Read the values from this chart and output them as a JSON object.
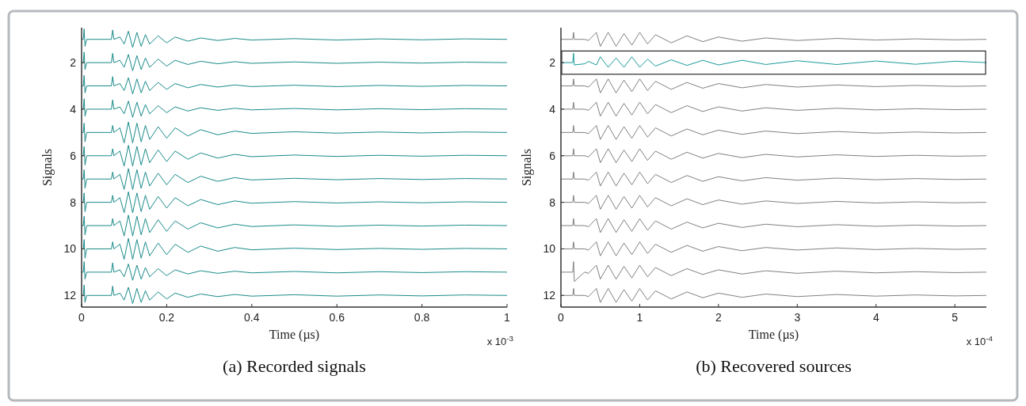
{
  "chart_data": [
    {
      "type": "line",
      "title": "(a) Recorded signals",
      "xlabel": "Time (µs)",
      "ylabel": "Signals",
      "annotations": [
        "x 10$^{-3}$"
      ],
      "x": [
        0,
        0.004,
        0.006,
        0.008,
        0.012,
        0.07,
        0.073,
        0.076,
        0.09,
        0.1,
        0.11,
        0.12,
        0.13,
        0.14,
        0.15,
        0.16,
        0.18,
        0.2,
        0.22,
        0.25,
        0.28,
        0.32,
        0.36,
        0.4,
        0.5,
        0.6,
        0.7,
        0.8,
        0.9,
        1
      ],
      "xlim": [
        0,
        1
      ],
      "xticks": [
        0,
        0.2,
        0.4,
        0.6,
        0.8,
        1
      ],
      "ylim": [
        12.5,
        0.5
      ],
      "yticks": [
        2,
        4,
        6,
        8,
        10,
        12
      ],
      "series": [
        {
          "color": "#1a8a8a",
          "values": [
            1,
            1,
            0.55,
            1.3,
            1,
            1,
            0.6,
            1,
            0.9,
            1.2,
            0.65,
            1.35,
            0.7,
            1.3,
            0.8,
            1.2,
            0.85,
            1.15,
            0.9,
            1.08,
            0.94,
            1.05,
            0.96,
            1.03,
            0.97,
            1.03,
            0.98,
            1.02,
            0.98,
            1
          ]
        },
        {
          "color": "#1a8a8a",
          "values": [
            2,
            2,
            1.55,
            2.3,
            2,
            2,
            1.6,
            2,
            1.9,
            2.2,
            1.65,
            2.35,
            1.7,
            2.3,
            1.8,
            2.2,
            1.85,
            2.15,
            1.9,
            2.08,
            1.94,
            2.05,
            1.96,
            2.03,
            1.97,
            2.03,
            1.98,
            2.02,
            1.98,
            2
          ]
        },
        {
          "color": "#1a8a8a",
          "values": [
            3,
            3,
            2.55,
            3.3,
            3,
            3,
            2.6,
            3,
            2.9,
            3.2,
            2.65,
            3.35,
            2.7,
            3.3,
            2.8,
            3.2,
            2.85,
            3.15,
            2.9,
            3.08,
            2.94,
            3.05,
            2.96,
            3.03,
            2.97,
            3.03,
            2.98,
            3.02,
            2.98,
            3
          ]
        },
        {
          "color": "#1a8a8a",
          "values": [
            4,
            4,
            3.55,
            4.3,
            4,
            4,
            3.6,
            4,
            3.9,
            4.2,
            3.65,
            4.35,
            3.7,
            4.3,
            3.8,
            4.2,
            3.85,
            4.15,
            3.9,
            4.08,
            3.94,
            4.05,
            3.96,
            4.03,
            3.97,
            4.03,
            3.98,
            4.02,
            3.98,
            4
          ]
        },
        {
          "color": "#1a8a8a",
          "values": [
            5,
            5,
            4.6,
            5.4,
            5,
            5,
            4.7,
            5,
            4.8,
            5.45,
            4.55,
            5.45,
            4.6,
            5.4,
            4.7,
            5.3,
            4.75,
            5.25,
            4.8,
            5.15,
            4.88,
            5.1,
            4.94,
            5.04,
            4.97,
            5.03,
            4.98,
            5.02,
            4.98,
            5
          ]
        },
        {
          "color": "#1a8a8a",
          "values": [
            6,
            6,
            5.6,
            6.4,
            6,
            6,
            5.7,
            6,
            5.8,
            6.45,
            5.55,
            6.45,
            5.6,
            6.4,
            5.7,
            6.3,
            5.75,
            6.25,
            5.8,
            6.15,
            5.88,
            6.1,
            5.94,
            6.04,
            5.97,
            6.03,
            5.98,
            6.02,
            5.98,
            6
          ]
        },
        {
          "color": "#1a8a8a",
          "values": [
            7,
            7,
            6.6,
            7.4,
            7,
            7,
            6.7,
            7,
            6.8,
            7.45,
            6.55,
            7.45,
            6.6,
            7.4,
            6.7,
            7.3,
            6.75,
            7.25,
            6.8,
            7.15,
            6.88,
            7.1,
            6.94,
            7.04,
            6.97,
            7.03,
            6.98,
            7.02,
            6.98,
            7
          ]
        },
        {
          "color": "#1a8a8a",
          "values": [
            8,
            8,
            7.6,
            8.4,
            8,
            8,
            7.7,
            8,
            7.8,
            8.45,
            7.55,
            8.45,
            7.6,
            8.4,
            7.7,
            8.3,
            7.75,
            8.25,
            7.8,
            8.15,
            7.88,
            8.1,
            7.94,
            8.04,
            7.97,
            8.03,
            7.98,
            8.02,
            7.98,
            8
          ]
        },
        {
          "color": "#1a8a8a",
          "values": [
            9,
            9,
            8.6,
            9.4,
            9,
            9,
            8.7,
            9,
            8.8,
            9.45,
            8.55,
            9.45,
            8.6,
            9.4,
            8.7,
            9.3,
            8.75,
            9.25,
            8.8,
            9.15,
            8.88,
            9.1,
            8.94,
            9.04,
            8.97,
            9.03,
            8.98,
            9.02,
            8.98,
            9
          ]
        },
        {
          "color": "#1a8a8a",
          "values": [
            10,
            10,
            9.6,
            10.4,
            10,
            10,
            9.7,
            10,
            9.8,
            10.45,
            9.55,
            10.45,
            9.6,
            10.4,
            9.7,
            10.3,
            9.75,
            10.25,
            9.8,
            10.15,
            9.88,
            10.1,
            9.94,
            10.04,
            9.97,
            10.03,
            9.98,
            10.02,
            9.98,
            10
          ]
        },
        {
          "color": "#1a8a8a",
          "values": [
            11,
            11,
            10.55,
            11.3,
            11,
            11,
            10.6,
            11,
            10.9,
            11.2,
            10.65,
            11.35,
            10.7,
            11.3,
            10.8,
            11.2,
            10.85,
            11.15,
            10.9,
            11.08,
            10.94,
            11.05,
            10.96,
            11.03,
            10.97,
            11.03,
            10.98,
            11.02,
            10.98,
            11
          ]
        },
        {
          "color": "#1a8a8a",
          "values": [
            12,
            12,
            11.55,
            12.3,
            12,
            12,
            11.6,
            12,
            11.9,
            12.2,
            11.65,
            12.35,
            11.7,
            12.3,
            11.8,
            12.2,
            11.85,
            12.15,
            11.9,
            12.08,
            11.94,
            12.05,
            11.96,
            12.03,
            11.97,
            12.03,
            11.98,
            12.02,
            11.98,
            12
          ]
        }
      ]
    },
    {
      "type": "line",
      "title": "(b) Recovered sources",
      "xlabel": "Time (µs)",
      "ylabel": "Signals",
      "annotations": [
        "x 10$^{-4}$"
      ],
      "x": [
        0,
        0.15,
        0.16,
        0.17,
        0.3,
        0.35,
        0.45,
        0.5,
        0.6,
        0.7,
        0.8,
        0.9,
        1,
        1.1,
        1.2,
        1.4,
        1.6,
        1.8,
        2,
        2.3,
        2.6,
        3,
        3.5,
        4,
        4.5,
        5,
        5.4
      ],
      "xlim": [
        0,
        5.4
      ],
      "xticks": [
        0,
        1,
        2,
        3,
        4,
        5
      ],
      "ylim": [
        12.5,
        0.5
      ],
      "yticks": [
        2,
        4,
        6,
        8,
        10,
        12
      ],
      "series": [
        {
          "color": "#808080",
          "values": [
            1,
            1,
            0.7,
            1,
            1,
            1.05,
            0.7,
            1.3,
            0.7,
            1.3,
            0.75,
            1.25,
            0.7,
            1.2,
            0.8,
            1.15,
            0.85,
            1.1,
            0.9,
            1.08,
            0.94,
            1.05,
            0.96,
            1.03,
            0.98,
            1.02,
            1
          ]
        },
        {
          "color": "#1a9a9a",
          "values": [
            2,
            2,
            1.6,
            2.1,
            2.05,
            1.95,
            2.1,
            1.75,
            2.2,
            1.8,
            2.2,
            1.75,
            2.2,
            1.85,
            2.15,
            1.88,
            2.12,
            1.9,
            2.1,
            1.9,
            2.08,
            1.92,
            2.08,
            1.93,
            2.07,
            1.94,
            2
          ]
        },
        {
          "color": "#808080",
          "values": [
            3,
            3,
            2.7,
            3,
            3,
            3.05,
            2.7,
            3.3,
            2.7,
            3.3,
            2.75,
            3.25,
            2.7,
            3.2,
            2.8,
            3.15,
            2.85,
            3.1,
            2.9,
            3.08,
            2.94,
            3.05,
            2.96,
            3.03,
            2.98,
            3.02,
            3
          ]
        },
        {
          "color": "#808080",
          "values": [
            4,
            4,
            3.7,
            4,
            4,
            4.05,
            3.7,
            4.3,
            3.7,
            4.3,
            3.75,
            4.25,
            3.7,
            4.2,
            3.8,
            4.15,
            3.85,
            4.1,
            3.9,
            4.08,
            3.94,
            4.05,
            3.96,
            4.03,
            3.98,
            4.02,
            4
          ]
        },
        {
          "color": "#808080",
          "values": [
            5,
            5,
            4.7,
            5,
            5,
            5.05,
            4.7,
            5.3,
            4.7,
            5.3,
            4.75,
            5.25,
            4.7,
            5.2,
            4.8,
            5.15,
            4.85,
            5.1,
            4.9,
            5.08,
            4.94,
            5.05,
            4.96,
            5.03,
            4.98,
            5.02,
            5
          ]
        },
        {
          "color": "#808080",
          "values": [
            6,
            6,
            5.7,
            6,
            6,
            6.05,
            5.7,
            6.3,
            5.7,
            6.3,
            5.75,
            6.25,
            5.7,
            6.2,
            5.8,
            6.15,
            5.85,
            6.1,
            5.9,
            6.08,
            5.94,
            6.05,
            5.96,
            6.03,
            5.98,
            6.02,
            6
          ]
        },
        {
          "color": "#808080",
          "values": [
            7,
            7,
            6.7,
            7,
            7,
            7.05,
            6.7,
            7.3,
            6.7,
            7.3,
            6.75,
            7.25,
            6.7,
            7.2,
            6.8,
            7.15,
            6.85,
            7.1,
            6.9,
            7.08,
            6.94,
            7.05,
            6.96,
            7.03,
            6.98,
            7.02,
            7
          ]
        },
        {
          "color": "#808080",
          "values": [
            8,
            8,
            7.7,
            8,
            8,
            8.05,
            7.7,
            8.3,
            7.7,
            8.3,
            7.75,
            8.25,
            7.7,
            8.2,
            7.8,
            8.15,
            7.85,
            8.1,
            7.9,
            8.08,
            7.94,
            8.05,
            7.96,
            8.03,
            7.98,
            8.02,
            8
          ]
        },
        {
          "color": "#808080",
          "values": [
            9,
            9,
            8.7,
            9,
            9,
            9.05,
            8.7,
            9.3,
            8.7,
            9.3,
            8.75,
            9.25,
            8.7,
            9.2,
            8.8,
            9.15,
            8.85,
            9.1,
            8.9,
            9.08,
            8.94,
            9.05,
            8.96,
            9.03,
            8.98,
            9.02,
            9
          ]
        },
        {
          "color": "#808080",
          "values": [
            10,
            10,
            9.7,
            10,
            10,
            10.05,
            9.7,
            10.3,
            9.7,
            10.3,
            9.75,
            10.25,
            9.7,
            10.2,
            9.8,
            10.15,
            9.85,
            10.1,
            9.9,
            10.08,
            9.94,
            10.05,
            9.96,
            10.03,
            9.98,
            10.02,
            10
          ]
        },
        {
          "color": "#808080",
          "values": [
            11,
            11,
            10.55,
            11.4,
            11,
            11.05,
            10.7,
            11.3,
            10.7,
            11.3,
            10.75,
            11.25,
            10.7,
            11.2,
            10.8,
            11.15,
            10.85,
            11.1,
            10.9,
            11.08,
            10.94,
            11.05,
            10.96,
            11.03,
            10.98,
            11.02,
            11
          ]
        },
        {
          "color": "#808080",
          "values": [
            12,
            12,
            11.7,
            12,
            12,
            12.05,
            11.7,
            12.3,
            11.7,
            12.3,
            11.75,
            12.25,
            11.7,
            12.2,
            11.8,
            12.15,
            11.85,
            12.1,
            11.9,
            12.08,
            11.94,
            12.05,
            11.96,
            12.03,
            11.98,
            12.02,
            12
          ]
        }
      ]
    }
  ]
}
